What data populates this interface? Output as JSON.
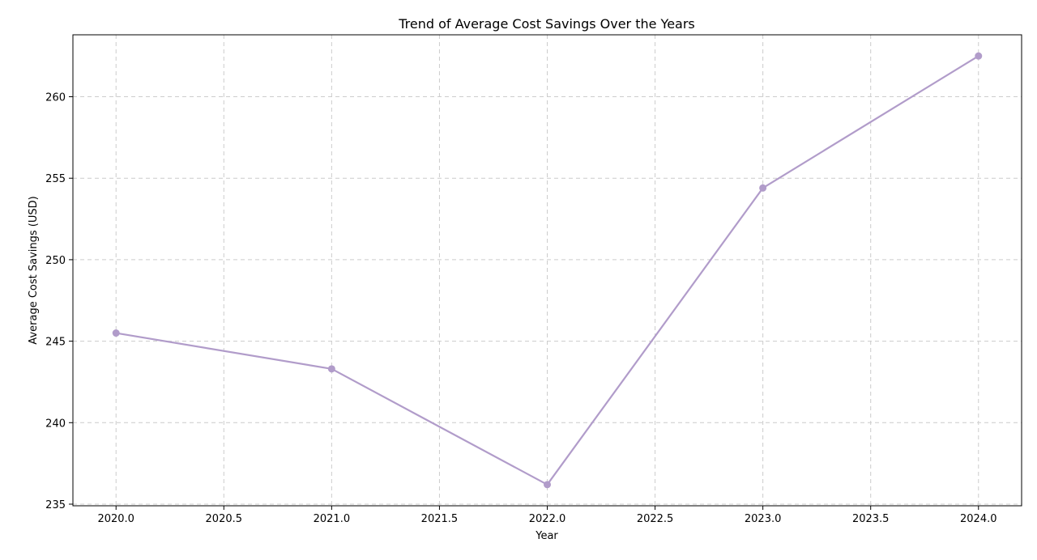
{
  "chart_data": {
    "type": "line",
    "title": "Trend of Average Cost Savings Over the Years",
    "xlabel": "Year",
    "ylabel": "Average Cost Savings (USD)",
    "xlim": [
      2019.8,
      2024.2
    ],
    "ylim": [
      234.9,
      263.8
    ],
    "x_ticks": [
      2020.0,
      2020.5,
      2021.0,
      2021.5,
      2022.0,
      2022.5,
      2023.0,
      2023.5,
      2024.0
    ],
    "x_tick_labels": [
      "2020.0",
      "2020.5",
      "2021.0",
      "2021.5",
      "2022.0",
      "2022.5",
      "2023.0",
      "2023.5",
      "2024.0"
    ],
    "y_ticks": [
      235,
      240,
      245,
      250,
      255,
      260
    ],
    "y_tick_labels": [
      "235",
      "240",
      "245",
      "250",
      "255",
      "260"
    ],
    "grid": true,
    "legend": "none",
    "series": [
      {
        "color": "#b19cca",
        "marker": "circle",
        "x": [
          2020,
          2021,
          2022,
          2023,
          2024
        ],
        "y": [
          245.5,
          243.3,
          236.2,
          254.4,
          262.5
        ]
      }
    ]
  }
}
